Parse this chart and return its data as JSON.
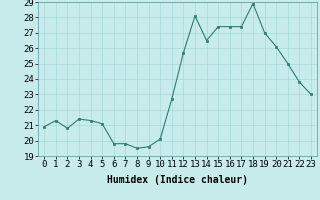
{
  "x": [
    0,
    1,
    2,
    3,
    4,
    5,
    6,
    7,
    8,
    9,
    10,
    11,
    12,
    13,
    14,
    15,
    16,
    17,
    18,
    19,
    20,
    21,
    22,
    23
  ],
  "y": [
    20.9,
    21.3,
    20.8,
    21.4,
    21.3,
    21.1,
    19.8,
    19.8,
    19.5,
    19.6,
    20.1,
    22.7,
    25.7,
    28.1,
    26.5,
    27.4,
    27.4,
    27.4,
    28.9,
    27.0,
    26.1,
    25.0,
    23.8,
    23.0
  ],
  "xlabel": "Humidex (Indice chaleur)",
  "ylabel": "",
  "ylim": [
    19,
    29
  ],
  "xlim": [
    -0.5,
    23.5
  ],
  "yticks": [
    19,
    20,
    21,
    22,
    23,
    24,
    25,
    26,
    27,
    28,
    29
  ],
  "xticks": [
    0,
    1,
    2,
    3,
    4,
    5,
    6,
    7,
    8,
    9,
    10,
    11,
    12,
    13,
    14,
    15,
    16,
    17,
    18,
    19,
    20,
    21,
    22,
    23
  ],
  "line_color": "#2e7d6e",
  "marker_color": "#2e7d6e",
  "bg_color": "#c8ecec",
  "grid_color": "#a8d8d8",
  "label_fontsize": 7,
  "tick_fontsize": 6.5
}
